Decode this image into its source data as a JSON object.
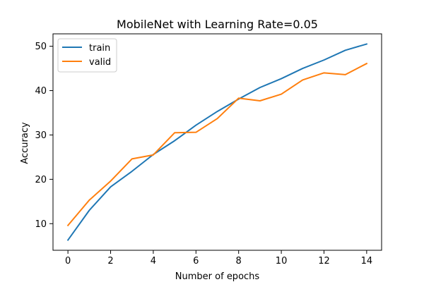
{
  "chart_data": {
    "type": "line",
    "title": "MobileNet with Learning Rate=0.05",
    "xlabel": "Number of epochs",
    "ylabel": "Accuracy",
    "x": [
      0,
      1,
      2,
      3,
      4,
      5,
      6,
      7,
      8,
      9,
      10,
      11,
      12,
      13,
      14
    ],
    "xlim": [
      -0.7,
      14.7
    ],
    "ylim": [
      4.0,
      52.8
    ],
    "xticks": [
      0,
      2,
      4,
      6,
      8,
      10,
      12,
      14
    ],
    "yticks": [
      10,
      20,
      30,
      40,
      50
    ],
    "grid": false,
    "legend_position": "top-left",
    "series": [
      {
        "name": "train",
        "color": "#1f77b4",
        "values": [
          6.3,
          13.0,
          18.3,
          21.8,
          25.6,
          28.7,
          32.2,
          35.3,
          38.1,
          40.7,
          42.7,
          45.0,
          46.9,
          49.1,
          50.5
        ]
      },
      {
        "name": "valid",
        "color": "#ff7f0e",
        "values": [
          9.6,
          15.3,
          19.6,
          24.6,
          25.5,
          30.5,
          30.6,
          33.7,
          38.3,
          37.7,
          39.2,
          42.4,
          44.0,
          43.6,
          46.1
        ]
      }
    ]
  }
}
